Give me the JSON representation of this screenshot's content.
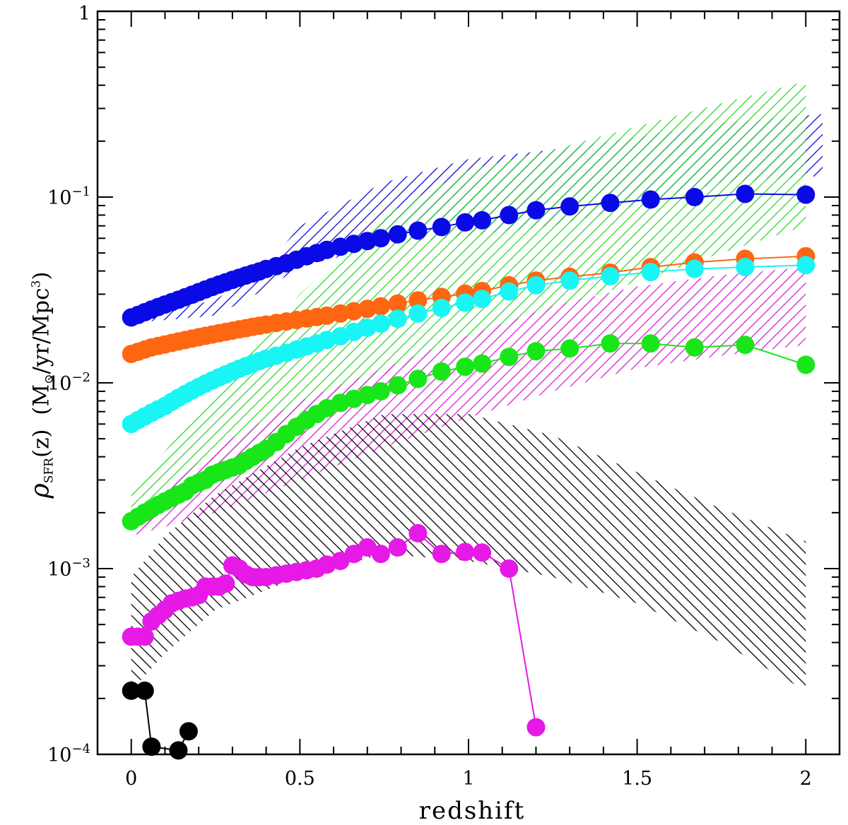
{
  "chart_data": {
    "type": "scatter",
    "xlabel": "redshift",
    "ylabel": {
      "symbol": "ρ",
      "subscript": "SFR",
      "argument": "(z)",
      "units_prefix": "(M",
      "sun": "⊙",
      "units_mid": "/yr/Mpc",
      "units_exp": "3",
      "units_suffix": ")"
    },
    "xlim": [
      -0.1,
      2.1
    ],
    "ylim": [
      0.0001,
      1
    ],
    "yscale": "log",
    "x_ticks": [
      {
        "value": 0,
        "label": "0"
      },
      {
        "value": 0.5,
        "label": "0.5"
      },
      {
        "value": 1,
        "label": "1"
      },
      {
        "value": 1.5,
        "label": "1.5"
      },
      {
        "value": 2,
        "label": "2"
      }
    ],
    "y_ticks": [
      {
        "value": 0.0001,
        "base": "10",
        "exp": "−4"
      },
      {
        "value": 0.001,
        "base": "10",
        "exp": "−3"
      },
      {
        "value": 0.01,
        "base": "10",
        "exp": "−2"
      },
      {
        "value": 0.1,
        "base": "10",
        "exp": "−1"
      },
      {
        "value": 1,
        "base": "1",
        "exp": ""
      }
    ],
    "grid": false,
    "bands": [
      {
        "color": "#0a0ad2",
        "angle": 45,
        "x": [
          0.0,
          0.25,
          0.4,
          0.5,
          0.75,
          1.0,
          1.25,
          1.5,
          1.75,
          2.05
        ],
        "lower": [
          0.021,
          0.023,
          0.032,
          0.042,
          0.055,
          0.062,
          0.07,
          0.09,
          0.12,
          0.13
        ],
        "upper": [
          0.022,
          0.028,
          0.042,
          0.07,
          0.12,
          0.16,
          0.18,
          0.21,
          0.25,
          0.28
        ]
      },
      {
        "color": "#2fd82f",
        "angle": 45,
        "x": [
          0.0,
          0.25,
          0.5,
          0.75,
          1.0,
          1.25,
          1.5,
          1.75,
          2.0
        ],
        "lower": [
          0.0015,
          0.003,
          0.006,
          0.011,
          0.017,
          0.025,
          0.035,
          0.05,
          0.07
        ],
        "upper": [
          0.0026,
          0.009,
          0.03,
          0.08,
          0.14,
          0.18,
          0.24,
          0.32,
          0.42
        ]
      },
      {
        "color": "#d81fd8",
        "angle": 45,
        "x": [
          0.0,
          0.25,
          0.5,
          0.75,
          1.0,
          1.25,
          1.5,
          1.75,
          2.0
        ],
        "lower": [
          0.0015,
          0.002,
          0.003,
          0.0045,
          0.0065,
          0.009,
          0.012,
          0.014,
          0.016
        ],
        "upper": [
          0.0018,
          0.0045,
          0.008,
          0.012,
          0.018,
          0.026,
          0.033,
          0.038,
          0.042
        ]
      },
      {
        "color": "#000000",
        "angle": 135,
        "x": [
          0.0,
          0.1,
          0.25,
          0.5,
          0.75,
          1.0,
          1.25,
          1.5,
          1.75,
          2.0
        ],
        "lower": [
          0.00022,
          0.00035,
          0.0006,
          0.0009,
          0.0012,
          0.0011,
          0.0009,
          0.00065,
          0.0004,
          0.00022
        ],
        "upper": [
          0.0009,
          0.0015,
          0.0025,
          0.0045,
          0.0068,
          0.0068,
          0.0052,
          0.0033,
          0.0021,
          0.0014
        ]
      }
    ],
    "series": [
      {
        "color": "#0a0ae6",
        "x": [
          0,
          0.02,
          0.04,
          0.06,
          0.08,
          0.1,
          0.12,
          0.14,
          0.16,
          0.18,
          0.2,
          0.22,
          0.24,
          0.26,
          0.28,
          0.3,
          0.32,
          0.34,
          0.36,
          0.38,
          0.4,
          0.43,
          0.46,
          0.49,
          0.52,
          0.55,
          0.58,
          0.62,
          0.66,
          0.7,
          0.74,
          0.79,
          0.85,
          0.92,
          0.99,
          1.04,
          1.12,
          1.2,
          1.3,
          1.42,
          1.54,
          1.67,
          1.82,
          2.0
        ],
        "y": [
          0.0225,
          0.0232,
          0.024,
          0.0248,
          0.0256,
          0.0264,
          0.0272,
          0.028,
          0.0289,
          0.0298,
          0.0308,
          0.0318,
          0.0328,
          0.0338,
          0.0348,
          0.0358,
          0.0368,
          0.0378,
          0.0388,
          0.0398,
          0.041,
          0.0425,
          0.044,
          0.046,
          0.048,
          0.05,
          0.052,
          0.054,
          0.056,
          0.058,
          0.06,
          0.063,
          0.066,
          0.069,
          0.073,
          0.075,
          0.08,
          0.085,
          0.089,
          0.093,
          0.097,
          0.1,
          0.104,
          0.103
        ]
      },
      {
        "color": "#ff6611",
        "x": [
          0,
          0.02,
          0.04,
          0.06,
          0.08,
          0.1,
          0.12,
          0.14,
          0.16,
          0.18,
          0.2,
          0.22,
          0.24,
          0.26,
          0.28,
          0.3,
          0.32,
          0.34,
          0.36,
          0.38,
          0.4,
          0.43,
          0.46,
          0.49,
          0.52,
          0.55,
          0.58,
          0.62,
          0.66,
          0.7,
          0.74,
          0.79,
          0.85,
          0.92,
          0.99,
          1.04,
          1.12,
          1.2,
          1.3,
          1.42,
          1.54,
          1.67,
          1.82,
          2.0
        ],
        "y": [
          0.0143,
          0.0147,
          0.0151,
          0.0155,
          0.0158,
          0.0161,
          0.0164,
          0.0167,
          0.017,
          0.0173,
          0.0176,
          0.0179,
          0.0182,
          0.0185,
          0.0188,
          0.0191,
          0.0194,
          0.0197,
          0.02,
          0.0203,
          0.0206,
          0.021,
          0.0214,
          0.0218,
          0.0222,
          0.0226,
          0.023,
          0.0236,
          0.0243,
          0.025,
          0.0258,
          0.0267,
          0.0278,
          0.029,
          0.0302,
          0.0312,
          0.0335,
          0.0355,
          0.0372,
          0.0392,
          0.042,
          0.0445,
          0.0465,
          0.048
        ]
      },
      {
        "color": "#19f5f5",
        "x": [
          0,
          0.02,
          0.04,
          0.06,
          0.08,
          0.1,
          0.12,
          0.14,
          0.16,
          0.18,
          0.2,
          0.22,
          0.24,
          0.26,
          0.28,
          0.3,
          0.32,
          0.34,
          0.36,
          0.38,
          0.4,
          0.43,
          0.46,
          0.49,
          0.52,
          0.55,
          0.58,
          0.62,
          0.66,
          0.7,
          0.74,
          0.79,
          0.85,
          0.92,
          0.99,
          1.04,
          1.12,
          1.2,
          1.3,
          1.42,
          1.54,
          1.67,
          1.82,
          2.0
        ],
        "y": [
          0.006,
          0.0063,
          0.0066,
          0.0069,
          0.0072,
          0.0075,
          0.0079,
          0.0083,
          0.0087,
          0.0091,
          0.0095,
          0.0099,
          0.0103,
          0.0107,
          0.0111,
          0.0115,
          0.0119,
          0.0123,
          0.0127,
          0.0131,
          0.0135,
          0.014,
          0.0145,
          0.0151,
          0.0157,
          0.0163,
          0.017,
          0.0178,
          0.0188,
          0.0198,
          0.0208,
          0.0221,
          0.0236,
          0.0253,
          0.027,
          0.0283,
          0.031,
          0.0335,
          0.0355,
          0.0375,
          0.0395,
          0.041,
          0.042,
          0.043
        ]
      },
      {
        "color": "#19e619",
        "x": [
          0,
          0.02,
          0.04,
          0.06,
          0.08,
          0.1,
          0.12,
          0.14,
          0.16,
          0.18,
          0.2,
          0.22,
          0.24,
          0.26,
          0.28,
          0.3,
          0.32,
          0.34,
          0.36,
          0.38,
          0.4,
          0.43,
          0.46,
          0.49,
          0.52,
          0.55,
          0.58,
          0.62,
          0.66,
          0.7,
          0.74,
          0.79,
          0.85,
          0.92,
          0.99,
          1.04,
          1.12,
          1.2,
          1.3,
          1.42,
          1.54,
          1.67,
          1.82,
          2.0
        ],
        "y": [
          0.0018,
          0.0019,
          0.002,
          0.0021,
          0.0022,
          0.0023,
          0.0024,
          0.0025,
          0.0026,
          0.0028,
          0.0029,
          0.003,
          0.0032,
          0.0033,
          0.0034,
          0.0035,
          0.0036,
          0.0038,
          0.004,
          0.0042,
          0.0044,
          0.0048,
          0.0053,
          0.0058,
          0.0063,
          0.0068,
          0.0073,
          0.0078,
          0.0082,
          0.0086,
          0.009,
          0.0097,
          0.0105,
          0.0115,
          0.0122,
          0.0127,
          0.0138,
          0.0148,
          0.0153,
          0.0163,
          0.0163,
          0.0155,
          0.016,
          0.0125
        ]
      },
      {
        "color": "#e619e6",
        "x": [
          0,
          0.02,
          0.04,
          0.06,
          0.08,
          0.1,
          0.12,
          0.14,
          0.16,
          0.18,
          0.2,
          0.22,
          0.24,
          0.26,
          0.28,
          0.3,
          0.32,
          0.34,
          0.36,
          0.38,
          0.4,
          0.43,
          0.46,
          0.49,
          0.52,
          0.55,
          0.58,
          0.62,
          0.66,
          0.7,
          0.74,
          0.79,
          0.85,
          0.92,
          0.99,
          1.04,
          1.12,
          1.2
        ],
        "y": [
          0.00043,
          0.00043,
          0.00043,
          0.00052,
          0.00056,
          0.0006,
          0.00065,
          0.00067,
          0.00069,
          0.0007,
          0.00072,
          0.0008,
          0.0008,
          0.0008,
          0.00083,
          0.00104,
          0.001,
          0.00093,
          0.0009,
          0.0009,
          0.0009,
          0.00092,
          0.00094,
          0.00096,
          0.00098,
          0.001,
          0.00105,
          0.0011,
          0.0012,
          0.0013,
          0.0012,
          0.0013,
          0.00155,
          0.0012,
          0.00123,
          0.00122,
          0.001,
          0.00014
        ]
      },
      {
        "color": "#000000",
        "x": [
          0,
          0.04,
          0.06,
          0.14,
          0.17
        ],
        "y": [
          0.00022,
          0.00022,
          0.00011,
          0.000105,
          0.000133
        ]
      }
    ]
  }
}
